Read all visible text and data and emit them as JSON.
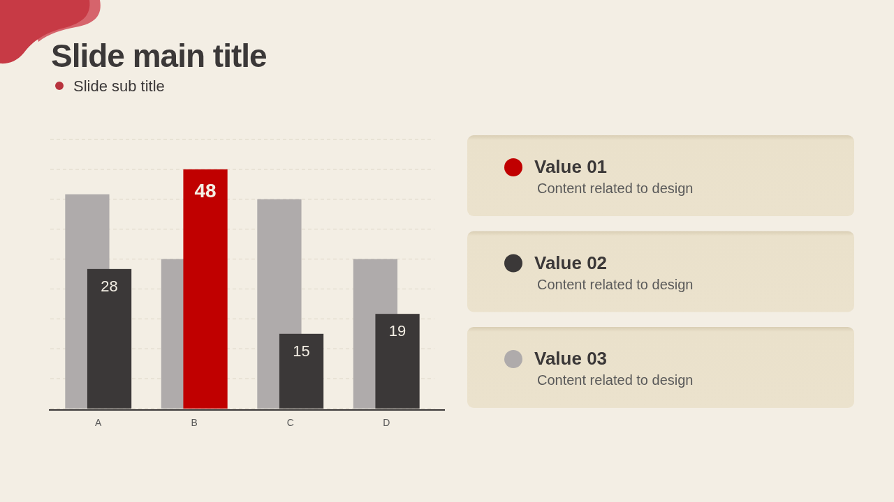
{
  "chart_data": [
    {
      "type": "bar",
      "title": "Slide main title",
      "subtitle": "Slide sub title",
      "categories": [
        "A",
        "B",
        "C",
        "D"
      ],
      "series": [
        {
          "color": "#afabab",
          "values": [
            43,
            30,
            42,
            30
          ]
        },
        {
          "color": "#3b3838",
          "colors": [
            "#3b3838",
            "#c00000",
            "#3b3838",
            "#3b3838"
          ],
          "values": [
            28,
            48,
            15,
            19
          ],
          "value_labels": [
            "28",
            "48",
            "15",
            "19"
          ]
        }
      ],
      "ylim": [
        0,
        54
      ],
      "yticks": [
        {
          "value": 0,
          "label": null
        },
        {
          "value": 6,
          "label": null
        },
        {
          "value": 12,
          "label": null
        },
        {
          "value": 18,
          "label": null
        },
        {
          "value": 24,
          "label": null
        },
        {
          "value": 30,
          "label": null
        },
        {
          "value": 36,
          "label": null
        },
        {
          "value": 42,
          "label": null
        },
        {
          "value": 48,
          "label": null
        },
        {
          "value": 54,
          "label": null
        }
      ],
      "grid": "y",
      "tick_labels": "x"
    },
    {
      "type": "other",
      "categories": [
        "Value 01",
        "Value 02",
        "Value 03"
      ],
      "colors": [
        "#c00000",
        "#3b3838",
        "#afabab"
      ],
      "annotations": [
        "Content related to design",
        "Content related to design",
        "Content related to design"
      ]
    }
  ]
}
